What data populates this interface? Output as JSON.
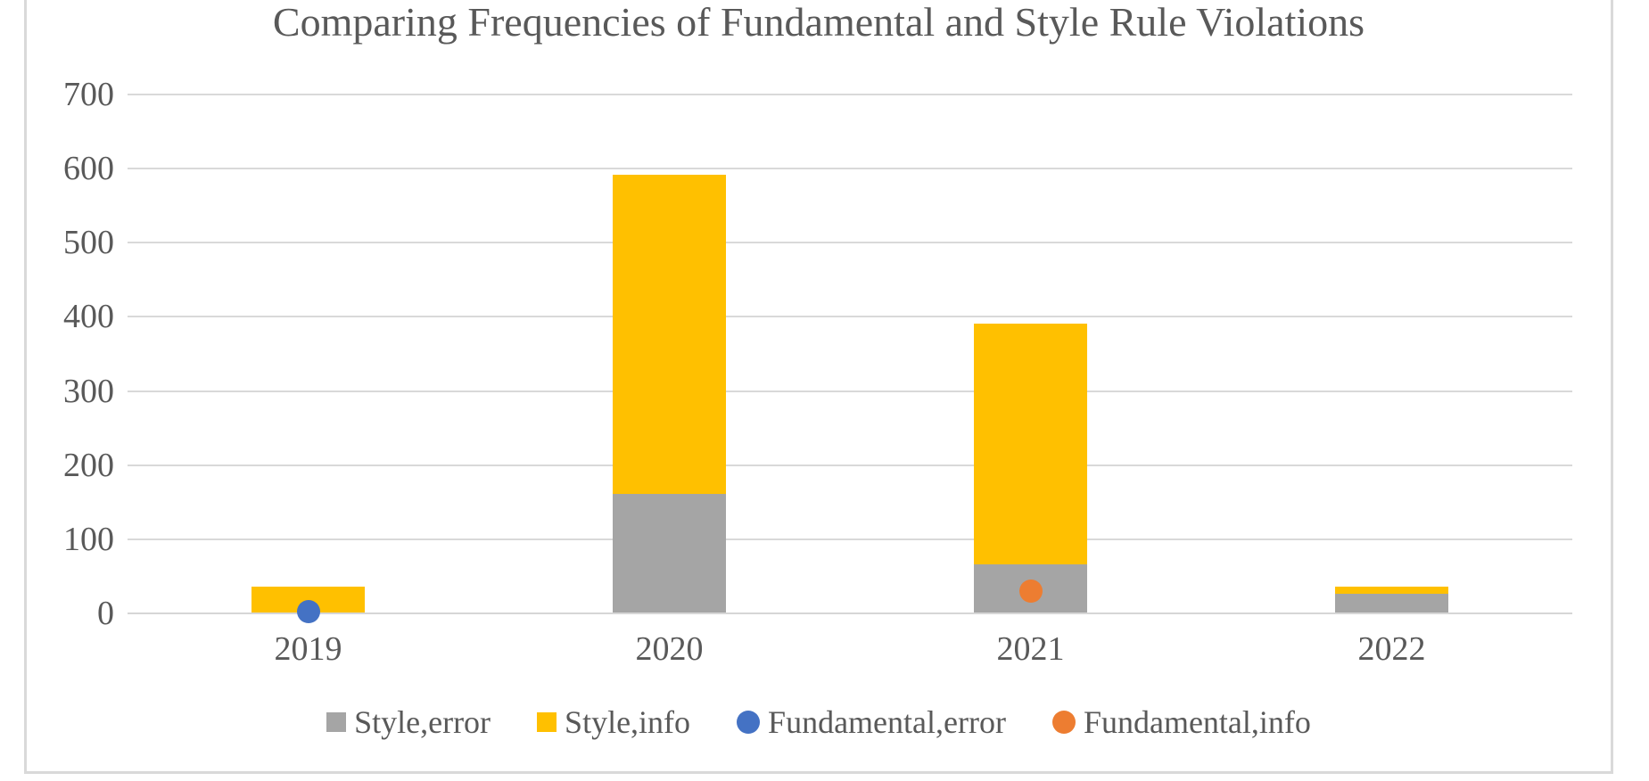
{
  "colors": {
    "text": "#595959",
    "gridline": "#D9D9D9",
    "axis_line": "#D6D6D6",
    "chart_border": "#D9D9D9",
    "background": "#FFFFFF",
    "style_error_gray": "#A5A5A5",
    "style_info_yellow": "#FFC000",
    "fundamental_error_blue": "#4472C4",
    "fundamental_info_orange": "#ED7D31"
  },
  "chart_data": {
    "type": "bar",
    "subtype": "stacked-columns-with-scatter-points",
    "title": "Comparing Frequencies of Fundamental and Style Rule Violations",
    "xlabel": "",
    "ylabel": "",
    "categories": [
      "2019",
      "2020",
      "2021",
      "2022"
    ],
    "series": [
      {
        "name": "Style,error",
        "render": "bar",
        "color": "#A5A5A5",
        "values": [
          0,
          160,
          65,
          25
        ]
      },
      {
        "name": "Style,info",
        "render": "bar",
        "color": "#FFC000",
        "values": [
          35,
          430,
          325,
          10
        ]
      },
      {
        "name": "Fundamental,error",
        "render": "point",
        "color": "#4472C4",
        "values": [
          2,
          null,
          null,
          null
        ]
      },
      {
        "name": "Fundamental,info",
        "render": "point",
        "color": "#ED7D31",
        "values": [
          null,
          null,
          30,
          null
        ]
      }
    ],
    "stacked_totals": [
      35,
      590,
      390,
      35
    ],
    "ylim": [
      0,
      700
    ],
    "ytick_step": 100,
    "yticks": [
      0,
      100,
      200,
      300,
      400,
      500,
      600,
      700
    ],
    "grid": true,
    "legend_position": "bottom",
    "legend": [
      {
        "label": "Style,error",
        "marker": "square",
        "color": "#A5A5A5"
      },
      {
        "label": "Style,info",
        "marker": "square",
        "color": "#FFC000"
      },
      {
        "label": "Fundamental,error",
        "marker": "circle",
        "color": "#4472C4"
      },
      {
        "label": "Fundamental,info",
        "marker": "circle",
        "color": "#ED7D31"
      }
    ]
  }
}
